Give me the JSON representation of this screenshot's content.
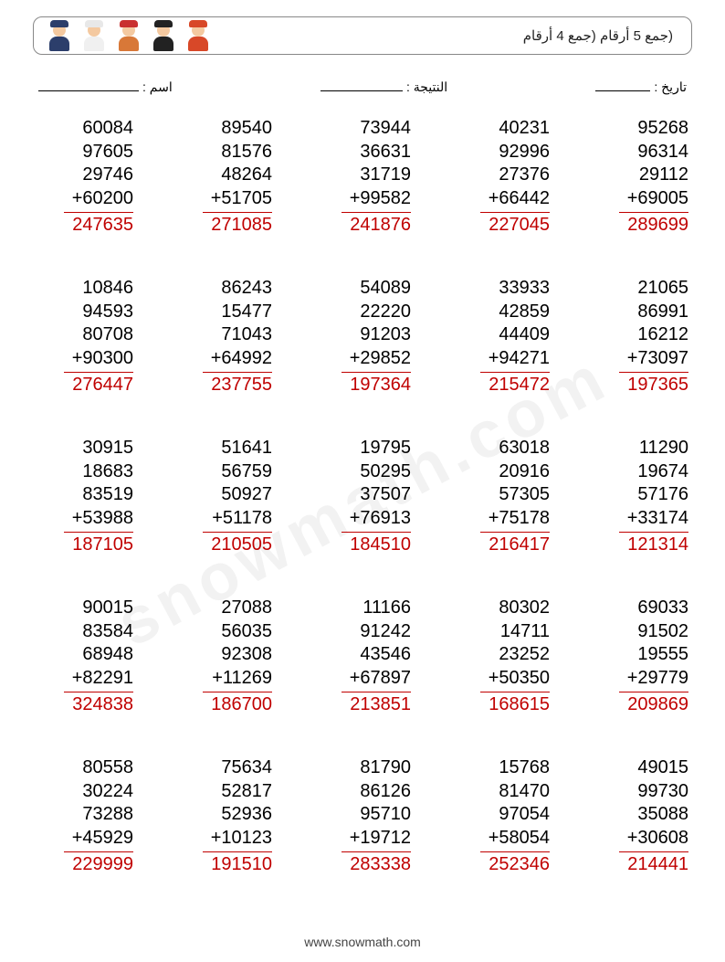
{
  "header": {
    "title": "(جمع 5 أرقام (جمع 4 أرقام",
    "icon_colors": [
      {
        "hat": "#2c3e6b",
        "head": "#f4c9a0",
        "body": "#2c3e6b"
      },
      {
        "hat": "#e8e8e8",
        "head": "#f4c9a0",
        "body": "#f0f0f0"
      },
      {
        "hat": "#c93030",
        "head": "#f4c9a0",
        "body": "#d87838"
      },
      {
        "hat": "#222222",
        "head": "#f4c9a0",
        "body": "#222222"
      },
      {
        "hat": "#d84828",
        "head": "#f4c9a0",
        "body": "#d84828"
      }
    ]
  },
  "fields": {
    "name_label": "اسم :",
    "score_label": "النتيجة :",
    "date_label": "تاريخ :",
    "name_line_width": 110,
    "score_line_width": 90,
    "date_line_width": 60
  },
  "style": {
    "answer_color": "#c00000",
    "text_color": "#000000",
    "rule_color": "#c00000",
    "font_size_problem": 20,
    "background": "#ffffff"
  },
  "problems": [
    [
      {
        "addends": [
          60084,
          97605,
          29746,
          60200
        ],
        "answer": 247635
      },
      {
        "addends": [
          89540,
          81576,
          48264,
          51705
        ],
        "answer": 271085
      },
      {
        "addends": [
          73944,
          36631,
          31719,
          99582
        ],
        "answer": 241876
      },
      {
        "addends": [
          40231,
          92996,
          27376,
          66442
        ],
        "answer": 227045
      },
      {
        "addends": [
          95268,
          96314,
          29112,
          69005
        ],
        "answer": 289699
      }
    ],
    [
      {
        "addends": [
          10846,
          94593,
          80708,
          90300
        ],
        "answer": 276447
      },
      {
        "addends": [
          86243,
          15477,
          71043,
          64992
        ],
        "answer": 237755
      },
      {
        "addends": [
          54089,
          22220,
          91203,
          29852
        ],
        "answer": 197364
      },
      {
        "addends": [
          33933,
          42859,
          44409,
          94271
        ],
        "answer": 215472
      },
      {
        "addends": [
          21065,
          86991,
          16212,
          73097
        ],
        "answer": 197365
      }
    ],
    [
      {
        "addends": [
          30915,
          18683,
          83519,
          53988
        ],
        "answer": 187105
      },
      {
        "addends": [
          51641,
          56759,
          50927,
          51178
        ],
        "answer": 210505
      },
      {
        "addends": [
          19795,
          50295,
          37507,
          76913
        ],
        "answer": 184510
      },
      {
        "addends": [
          63018,
          20916,
          57305,
          75178
        ],
        "answer": 216417
      },
      {
        "addends": [
          11290,
          19674,
          57176,
          33174
        ],
        "answer": 121314
      }
    ],
    [
      {
        "addends": [
          90015,
          83584,
          68948,
          82291
        ],
        "answer": 324838
      },
      {
        "addends": [
          27088,
          56035,
          92308,
          11269
        ],
        "answer": 186700
      },
      {
        "addends": [
          11166,
          91242,
          43546,
          67897
        ],
        "answer": 213851
      },
      {
        "addends": [
          80302,
          14711,
          23252,
          50350
        ],
        "answer": 168615
      },
      {
        "addends": [
          69033,
          91502,
          19555,
          29779
        ],
        "answer": 209869
      }
    ],
    [
      {
        "addends": [
          80558,
          30224,
          73288,
          45929
        ],
        "answer": 229999
      },
      {
        "addends": [
          75634,
          52817,
          52936,
          10123
        ],
        "answer": 191510
      },
      {
        "addends": [
          81790,
          86126,
          95710,
          19712
        ],
        "answer": 283338
      },
      {
        "addends": [
          15768,
          81470,
          97054,
          58054
        ],
        "answer": 252346
      },
      {
        "addends": [
          49015,
          99730,
          35088,
          30608
        ],
        "answer": 214441
      }
    ]
  ],
  "footer": {
    "text": "www.snowmath.com"
  },
  "watermark": "snowmath.com"
}
